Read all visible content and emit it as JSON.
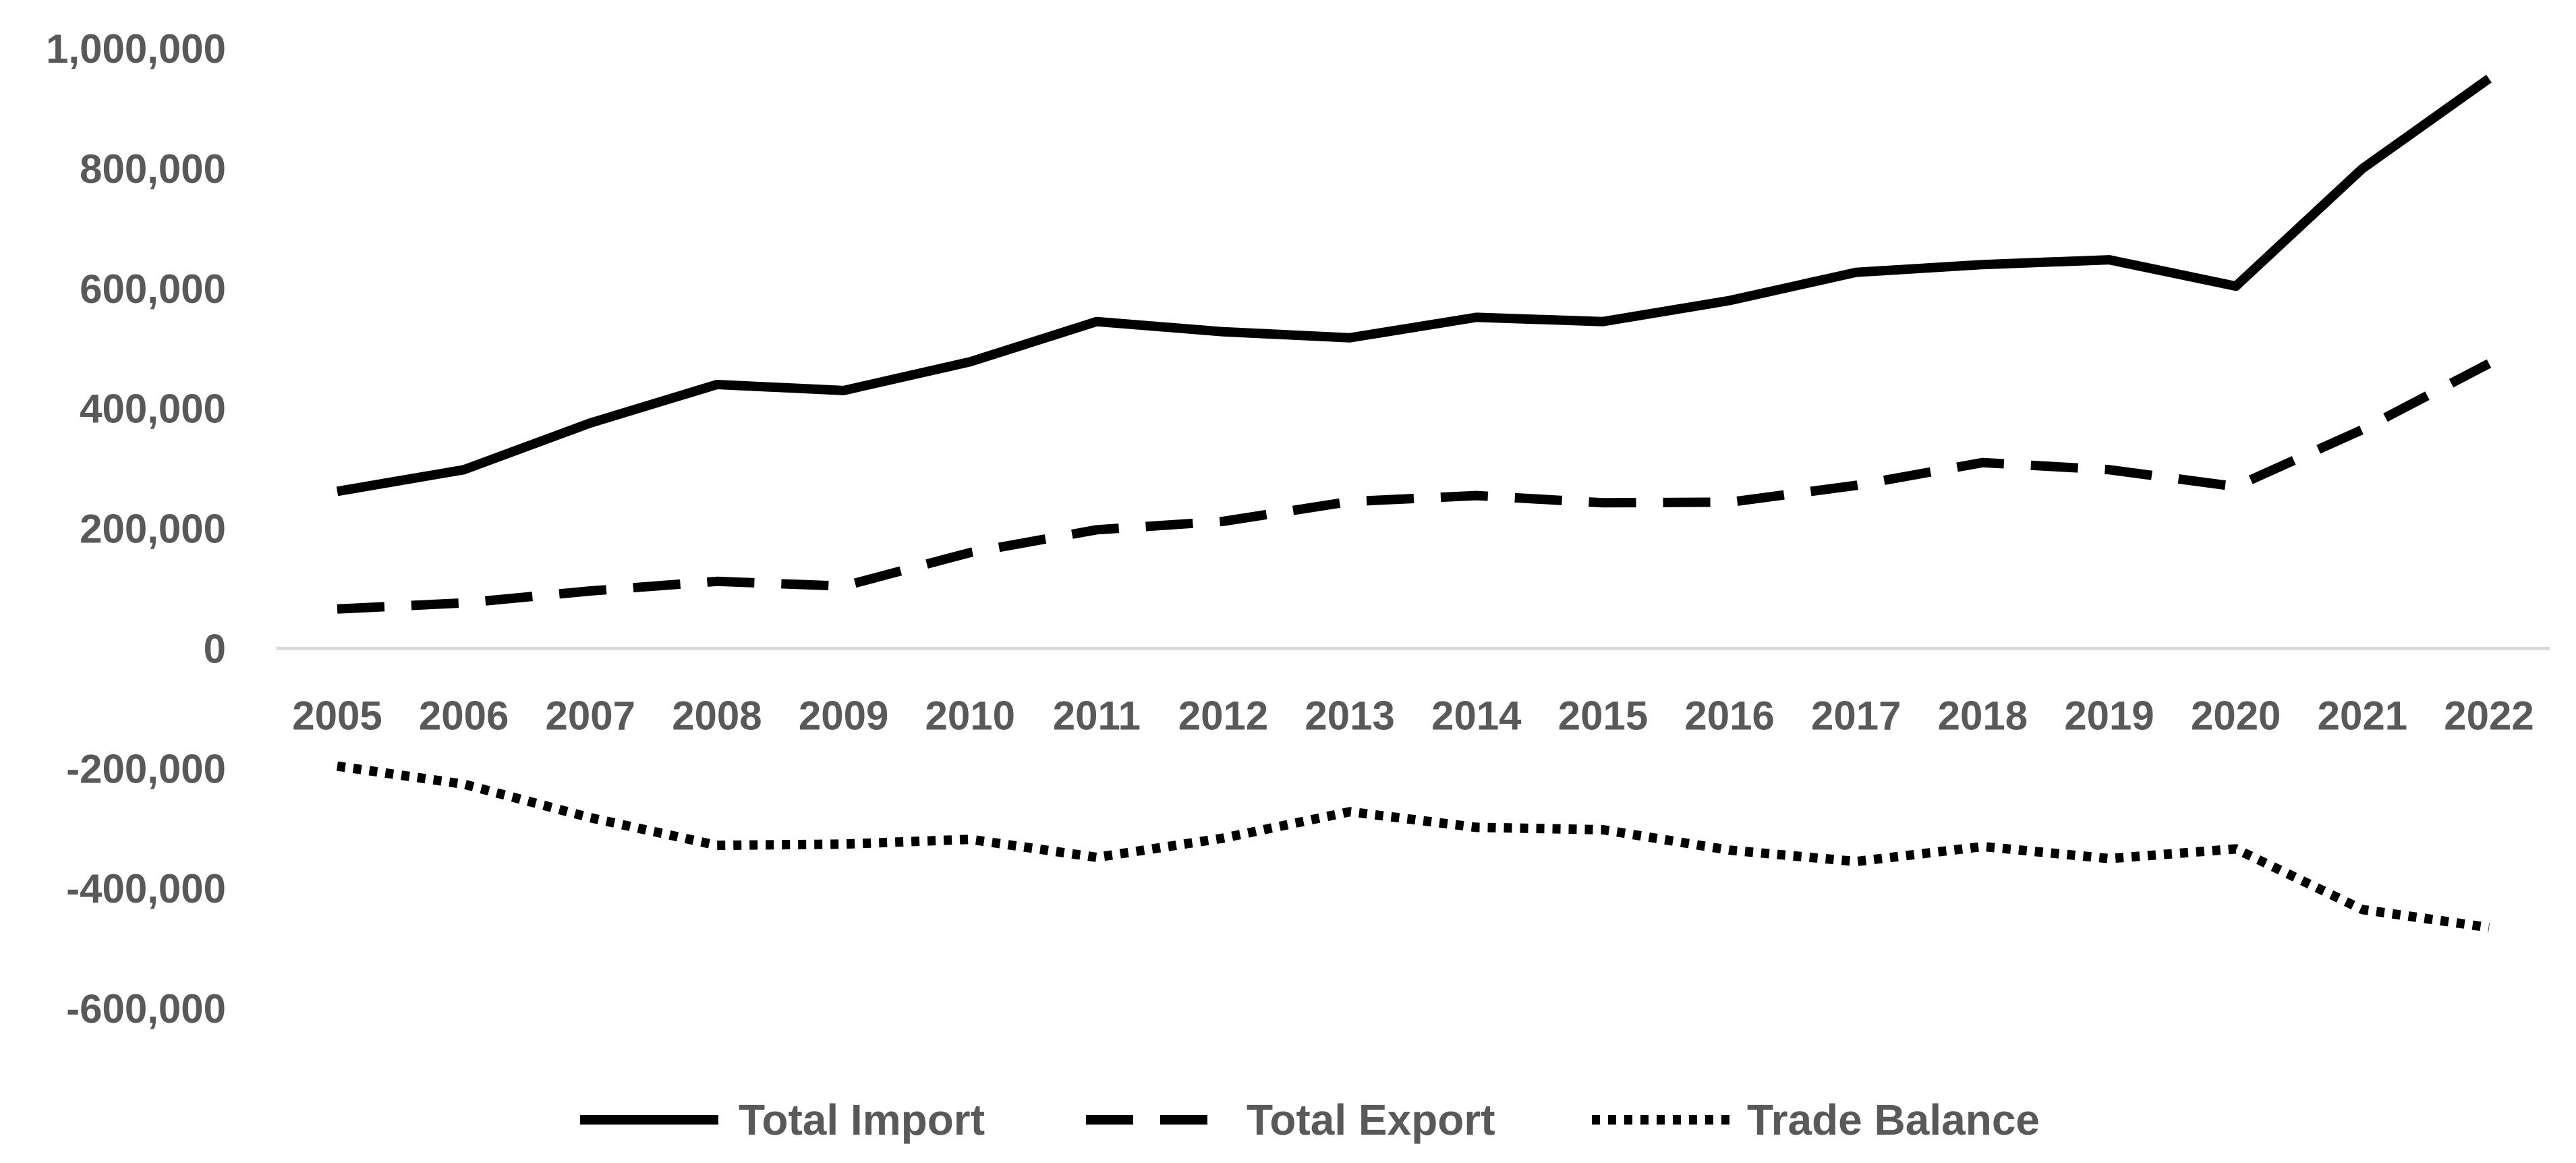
{
  "chart_data": {
    "type": "line",
    "title": "",
    "xlabel": "",
    "ylabel": "",
    "ylim": [
      -600000,
      1000000
    ],
    "grid": false,
    "legend_position": "bottom",
    "categories": [
      "2005",
      "2006",
      "2007",
      "2008",
      "2009",
      "2010",
      "2011",
      "2012",
      "2013",
      "2014",
      "2015",
      "2016",
      "2017",
      "2018",
      "2019",
      "2020",
      "2021",
      "2022"
    ],
    "y_ticks": [
      1000000,
      800000,
      600000,
      400000,
      200000,
      0,
      -200000,
      -400000,
      -600000
    ],
    "y_tick_labels": [
      "1,000,000",
      "800,000",
      "600,000",
      "400,000",
      "200,000",
      "0",
      "-200,000",
      "-400,000",
      "-600,000"
    ],
    "series": [
      {
        "name": "Total Import",
        "style": "solid",
        "values": [
          262000,
          298000,
          376000,
          440000,
          430000,
          478000,
          545000,
          528000,
          518000,
          552000,
          545000,
          580000,
          627000,
          640000,
          648000,
          604000,
          800000,
          950000
        ]
      },
      {
        "name": "Total Export",
        "style": "dashed",
        "values": [
          66000,
          76000,
          96000,
          112000,
          104000,
          160000,
          198000,
          212000,
          245000,
          255000,
          243000,
          244000,
          272000,
          310000,
          298000,
          270000,
          365000,
          475000
        ]
      },
      {
        "name": "Trade Balance",
        "style": "dotted",
        "values": [
          -196000,
          -226000,
          -282000,
          -328000,
          -326000,
          -318000,
          -348000,
          -316000,
          -272000,
          -298000,
          -302000,
          -336000,
          -355000,
          -330000,
          -350000,
          -334000,
          -435000,
          -465000
        ]
      }
    ],
    "colors": {
      "line": "#000000",
      "text": "#595959",
      "axis": "#d9d9d9"
    }
  }
}
